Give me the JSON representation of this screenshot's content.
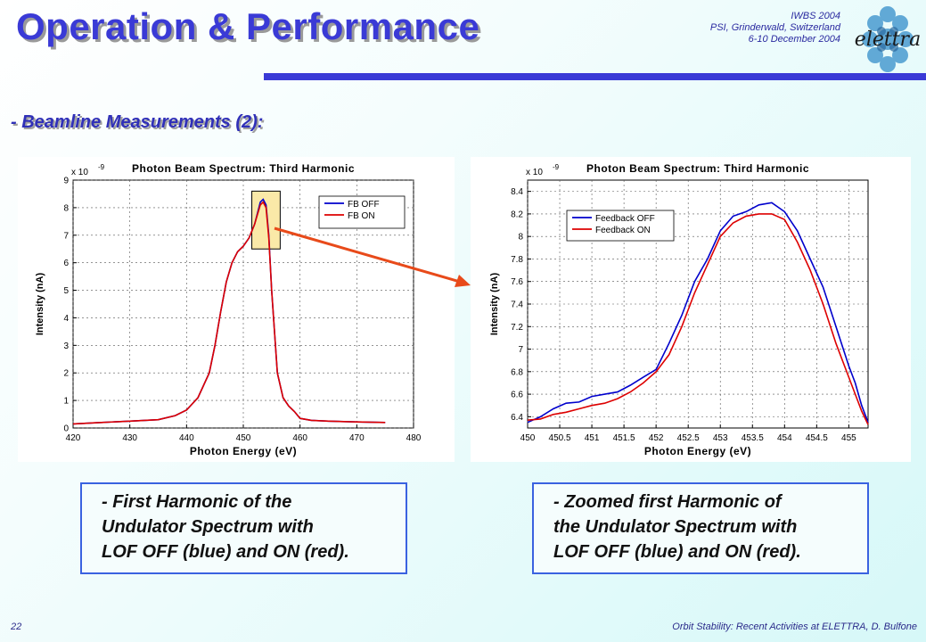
{
  "header": {
    "title": "Operation & Performance",
    "conference": [
      "IWBS 2004",
      "PSI, Grinderwald, Switzerland",
      "6-10 December 2004"
    ],
    "logo_text": "elettra"
  },
  "subtitle": "- Beamline Measurements (2):",
  "captions": {
    "left": [
      "- First Harmonic of the",
      "Undulator Spectrum with",
      "LOF OFF (blue) and ON (red)."
    ],
    "right": [
      "- Zoomed first Harmonic of",
      "the Undulator Spectrum with",
      "LOF OFF (blue) and ON (red)."
    ]
  },
  "footer": {
    "page_number": "22",
    "text": "Orbit Stability: Recent Activities at ELETTRA, D. Bulfone"
  },
  "colors": {
    "blue": "#0000cc",
    "red": "#dd0000",
    "accent": "#3a3ad6",
    "arrow": "#e84a1a"
  },
  "chart_data": [
    {
      "type": "line",
      "title": "Photon Beam Spectrum: Third Harmonic",
      "xlabel": "Photon Energy (eV)",
      "ylabel": "Intensity (nA)",
      "y_multiplier": "x 10",
      "y_exponent": "-9",
      "xlim": [
        420,
        480
      ],
      "ylim": [
        0,
        9
      ],
      "xticks": [
        "420",
        "430",
        "440",
        "450",
        "460",
        "470",
        "480"
      ],
      "yticks": [
        "0",
        "1",
        "2",
        "3",
        "4",
        "5",
        "6",
        "7",
        "8",
        "9"
      ],
      "grid": true,
      "legend_position": "top-right",
      "series": [
        {
          "name": "FB OFF",
          "color": "#0000cc",
          "x": [
            420,
            425,
            430,
            435,
            438,
            440,
            442,
            444,
            445,
            446,
            447,
            448,
            449,
            450,
            451,
            452,
            453,
            453.5,
            454,
            454.5,
            455,
            456,
            457,
            458,
            459,
            460,
            462,
            465,
            470,
            475
          ],
          "y": [
            0.15,
            0.2,
            0.25,
            0.3,
            0.45,
            0.65,
            1.1,
            2.0,
            3.0,
            4.2,
            5.3,
            6.0,
            6.4,
            6.6,
            6.9,
            7.4,
            8.2,
            8.3,
            8.1,
            7.0,
            5.0,
            2.0,
            1.1,
            0.8,
            0.6,
            0.35,
            0.28,
            0.25,
            0.22,
            0.2
          ]
        },
        {
          "name": "FB ON",
          "color": "#dd0000",
          "x": [
            420,
            425,
            430,
            435,
            438,
            440,
            442,
            444,
            445,
            446,
            447,
            448,
            449,
            450,
            451,
            452,
            453,
            453.5,
            454,
            454.5,
            455,
            456,
            457,
            458,
            459,
            460,
            462,
            465,
            470,
            475
          ],
          "y": [
            0.15,
            0.2,
            0.25,
            0.3,
            0.45,
            0.65,
            1.1,
            2.0,
            3.0,
            4.2,
            5.3,
            6.0,
            6.4,
            6.6,
            6.9,
            7.4,
            8.1,
            8.2,
            8.0,
            6.9,
            5.0,
            2.0,
            1.1,
            0.8,
            0.6,
            0.35,
            0.28,
            0.25,
            0.22,
            0.2
          ]
        }
      ]
    },
    {
      "type": "line",
      "title": "Photon Beam Spectrum: Third Harmonic",
      "xlabel": "Photon Energy (eV)",
      "ylabel": "Intensity (nA)",
      "y_multiplier": "x 10",
      "y_exponent": "-9",
      "xlim": [
        450,
        455.3
      ],
      "ylim": [
        6.3,
        8.5
      ],
      "xticks": [
        "450",
        "450.5",
        "451",
        "451.5",
        "452",
        "452.5",
        "453",
        "453.5",
        "454",
        "454.5",
        "455"
      ],
      "yticks": [
        "6.4",
        "6.6",
        "6.8",
        "7",
        "7.2",
        "7.4",
        "7.6",
        "7.8",
        "8",
        "8.2",
        "8.4"
      ],
      "grid": true,
      "legend_position": "top-left",
      "series": [
        {
          "name": "Feedback OFF",
          "color": "#0000cc",
          "x": [
            450,
            450.2,
            450.4,
            450.6,
            450.8,
            451,
            451.2,
            451.4,
            451.6,
            451.8,
            452,
            452.2,
            452.4,
            452.6,
            452.8,
            453,
            453.2,
            453.4,
            453.6,
            453.8,
            454,
            454.2,
            454.4,
            454.6,
            454.8,
            455,
            455.1,
            455.2,
            455.3
          ],
          "y": [
            6.35,
            6.4,
            6.47,
            6.52,
            6.53,
            6.58,
            6.6,
            6.62,
            6.68,
            6.75,
            6.82,
            7.05,
            7.3,
            7.6,
            7.8,
            8.05,
            8.18,
            8.22,
            8.28,
            8.3,
            8.22,
            8.05,
            7.8,
            7.55,
            7.2,
            6.85,
            6.7,
            6.5,
            6.35
          ]
        },
        {
          "name": "Feedback ON",
          "color": "#dd0000",
          "x": [
            450,
            450.2,
            450.4,
            450.6,
            450.8,
            451,
            451.2,
            451.4,
            451.6,
            451.8,
            452,
            452.2,
            452.4,
            452.6,
            452.8,
            453,
            453.2,
            453.4,
            453.6,
            453.8,
            454,
            454.2,
            454.4,
            454.6,
            454.8,
            455,
            455.1,
            455.2,
            455.3
          ],
          "y": [
            6.37,
            6.38,
            6.42,
            6.44,
            6.47,
            6.5,
            6.52,
            6.56,
            6.62,
            6.7,
            6.8,
            6.95,
            7.2,
            7.5,
            7.75,
            8.0,
            8.12,
            8.18,
            8.2,
            8.2,
            8.15,
            7.95,
            7.7,
            7.4,
            7.05,
            6.75,
            6.6,
            6.45,
            6.33
          ]
        }
      ]
    }
  ]
}
